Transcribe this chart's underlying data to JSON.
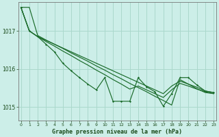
{
  "title": "Graphe pression niveau de la mer (hPa)",
  "bg_color": "#cceee8",
  "grid_color": "#aad8cc",
  "line_color": "#1a6b2a",
  "smooth1": [
    1017.62,
    1017.62,
    1016.88,
    1016.76,
    1016.65,
    1016.54,
    1016.42,
    1016.31,
    1016.2,
    1016.08,
    1015.97,
    1015.85,
    1015.74,
    1015.62,
    1015.51,
    1015.4,
    1015.28,
    1015.17,
    1015.05,
    1015.72,
    1015.6,
    1015.48,
    1015.38,
    1015.35
  ],
  "smooth2": [
    1017.62,
    1017.0,
    1016.85,
    1016.75,
    1016.65,
    1016.55,
    1016.45,
    1016.35,
    1016.25,
    1016.15,
    1016.05,
    1015.95,
    1015.85,
    1015.75,
    1015.65,
    1015.55,
    1015.45,
    1015.35,
    1015.55,
    1015.68,
    1015.6,
    1015.52,
    1015.42,
    1015.38
  ],
  "smooth3": [
    1017.62,
    1017.0,
    1016.85,
    1016.72,
    1016.6,
    1016.47,
    1016.35,
    1016.22,
    1016.1,
    1015.97,
    1015.85,
    1015.72,
    1015.6,
    1015.47,
    1015.55,
    1015.45,
    1015.35,
    1015.25,
    1015.45,
    1015.62,
    1015.55,
    1015.47,
    1015.4,
    1015.35
  ],
  "jagged": [
    1017.62,
    1017.0,
    1016.85,
    1016.65,
    1016.45,
    1016.15,
    1015.95,
    1015.77,
    1015.6,
    1015.45,
    1015.77,
    1015.15,
    1015.15,
    1015.15,
    1015.77,
    1015.53,
    1015.4,
    1015.02,
    1015.35,
    1015.77,
    1015.77,
    1015.58,
    1015.42,
    1015.38
  ],
  "yticks": [
    1015,
    1016,
    1017
  ],
  "xticks": [
    0,
    1,
    2,
    3,
    4,
    5,
    6,
    7,
    8,
    9,
    10,
    11,
    12,
    13,
    14,
    15,
    16,
    17,
    18,
    19,
    20,
    21,
    22,
    23
  ],
  "xlim": [
    -0.3,
    23.3
  ],
  "ylim": [
    1014.65,
    1017.75
  ]
}
